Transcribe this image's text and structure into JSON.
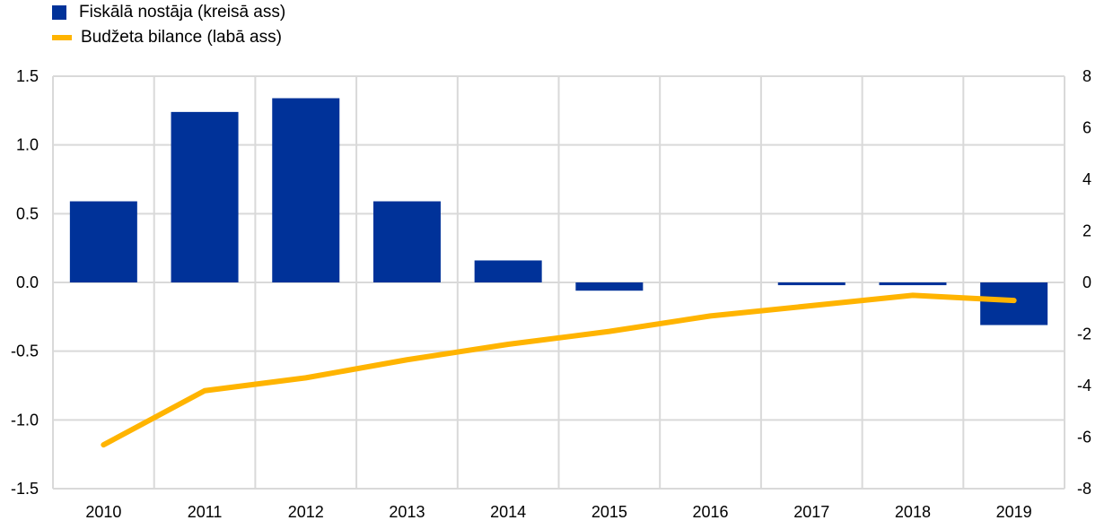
{
  "chart_data": {
    "type": "bar+line",
    "categories": [
      "2010",
      "2011",
      "2012",
      "2013",
      "2014",
      "2015",
      "2016",
      "2017",
      "2018",
      "2019"
    ],
    "series": [
      {
        "name": "Fiskālā nostāja (kreisā ass)",
        "type": "bar",
        "axis": "left",
        "color": "#003299",
        "values": [
          0.59,
          1.24,
          1.34,
          0.59,
          0.16,
          -0.06,
          0.0,
          -0.02,
          -0.02,
          -0.31
        ]
      },
      {
        "name": "Budžeta bilance (labā ass)",
        "type": "line",
        "axis": "right",
        "color": "#FFB400",
        "values": [
          -6.3,
          -4.2,
          -3.7,
          -3.0,
          -2.4,
          -1.9,
          -1.3,
          -0.9,
          -0.5,
          -0.7
        ]
      }
    ],
    "y_left": {
      "range": [
        -1.5,
        1.5
      ],
      "ticks": [
        "1.5",
        "1.0",
        "0.5",
        "0.0",
        "-0.5",
        "-1.0",
        "-1.5"
      ]
    },
    "y_right": {
      "range": [
        -8,
        8
      ],
      "ticks": [
        "8",
        "6",
        "4",
        "2",
        "0",
        "-2",
        "-4",
        "-6",
        "-8"
      ]
    },
    "grid": true,
    "legend_placement": "top-left"
  }
}
